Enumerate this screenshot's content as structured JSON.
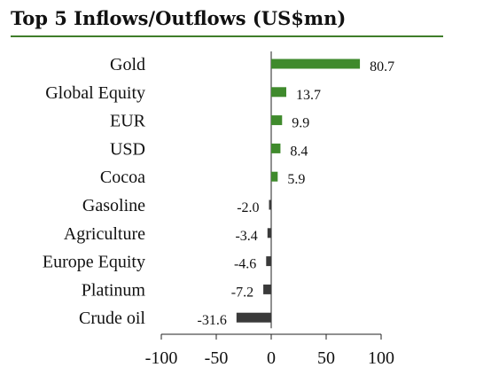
{
  "chart_data": {
    "type": "bar",
    "orientation": "horizontal",
    "title": "Top 5 Inflows/Outflows (US$mn)",
    "categories": [
      "Gold",
      "Global Equity",
      "EUR",
      "USD",
      "Cocoa",
      "Gasoline",
      "Agriculture",
      "Europe Equity",
      "Platinum",
      "Crude oil"
    ],
    "values": [
      80.7,
      13.7,
      9.9,
      8.4,
      5.9,
      -2.0,
      -3.4,
      -4.6,
      -7.2,
      -31.6
    ],
    "value_labels": [
      "80.7",
      "13.7",
      "9.9",
      "8.4",
      "5.9",
      "-2.0",
      "-3.4",
      "-4.6",
      "-7.2",
      "-31.6"
    ],
    "xlim": [
      -100,
      100
    ],
    "xticks": [
      -100,
      -50,
      0,
      50,
      100
    ],
    "xtick_labels": [
      "-100",
      "-50",
      "0",
      "50",
      "100"
    ],
    "grid": false,
    "legend": "none",
    "colors": {
      "positive": "#3f8a2c",
      "negative": "#3a3a3a",
      "title_rule": "#3f7d2a"
    }
  }
}
